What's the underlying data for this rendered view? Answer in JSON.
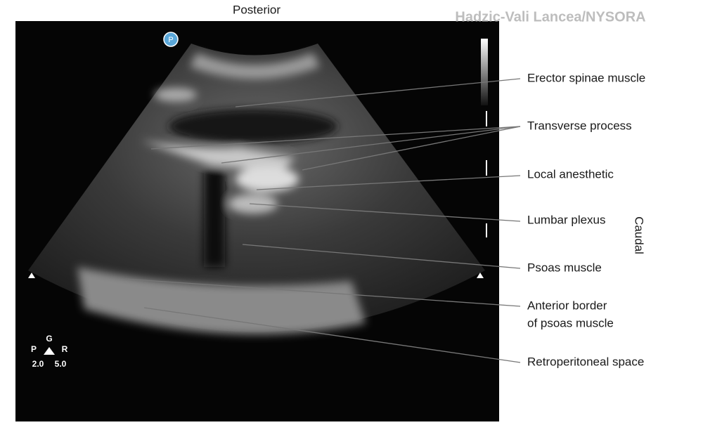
{
  "header": {
    "top_label": "Posterior",
    "credit": "Hadzic-Vali Lancea/NYSORA",
    "side_label": "Caudal"
  },
  "orientation_icon": "P",
  "labels": [
    {
      "lines": [
        "Erector spinae muscle"
      ]
    },
    {
      "lines": [
        "Transverse process"
      ]
    },
    {
      "lines": [
        "Local anesthetic"
      ]
    },
    {
      "lines": [
        "Lumbar plexus"
      ]
    },
    {
      "lines": [
        "Psoas muscle"
      ]
    },
    {
      "lines": [
        "Anterior border",
        "of psoas muscle"
      ]
    },
    {
      "lines": [
        "Retroperitoneal space"
      ]
    }
  ],
  "probe_marker": {
    "top": "G",
    "left": "P",
    "right": "R",
    "depth_left": "2.0",
    "depth_right": "5.0"
  }
}
